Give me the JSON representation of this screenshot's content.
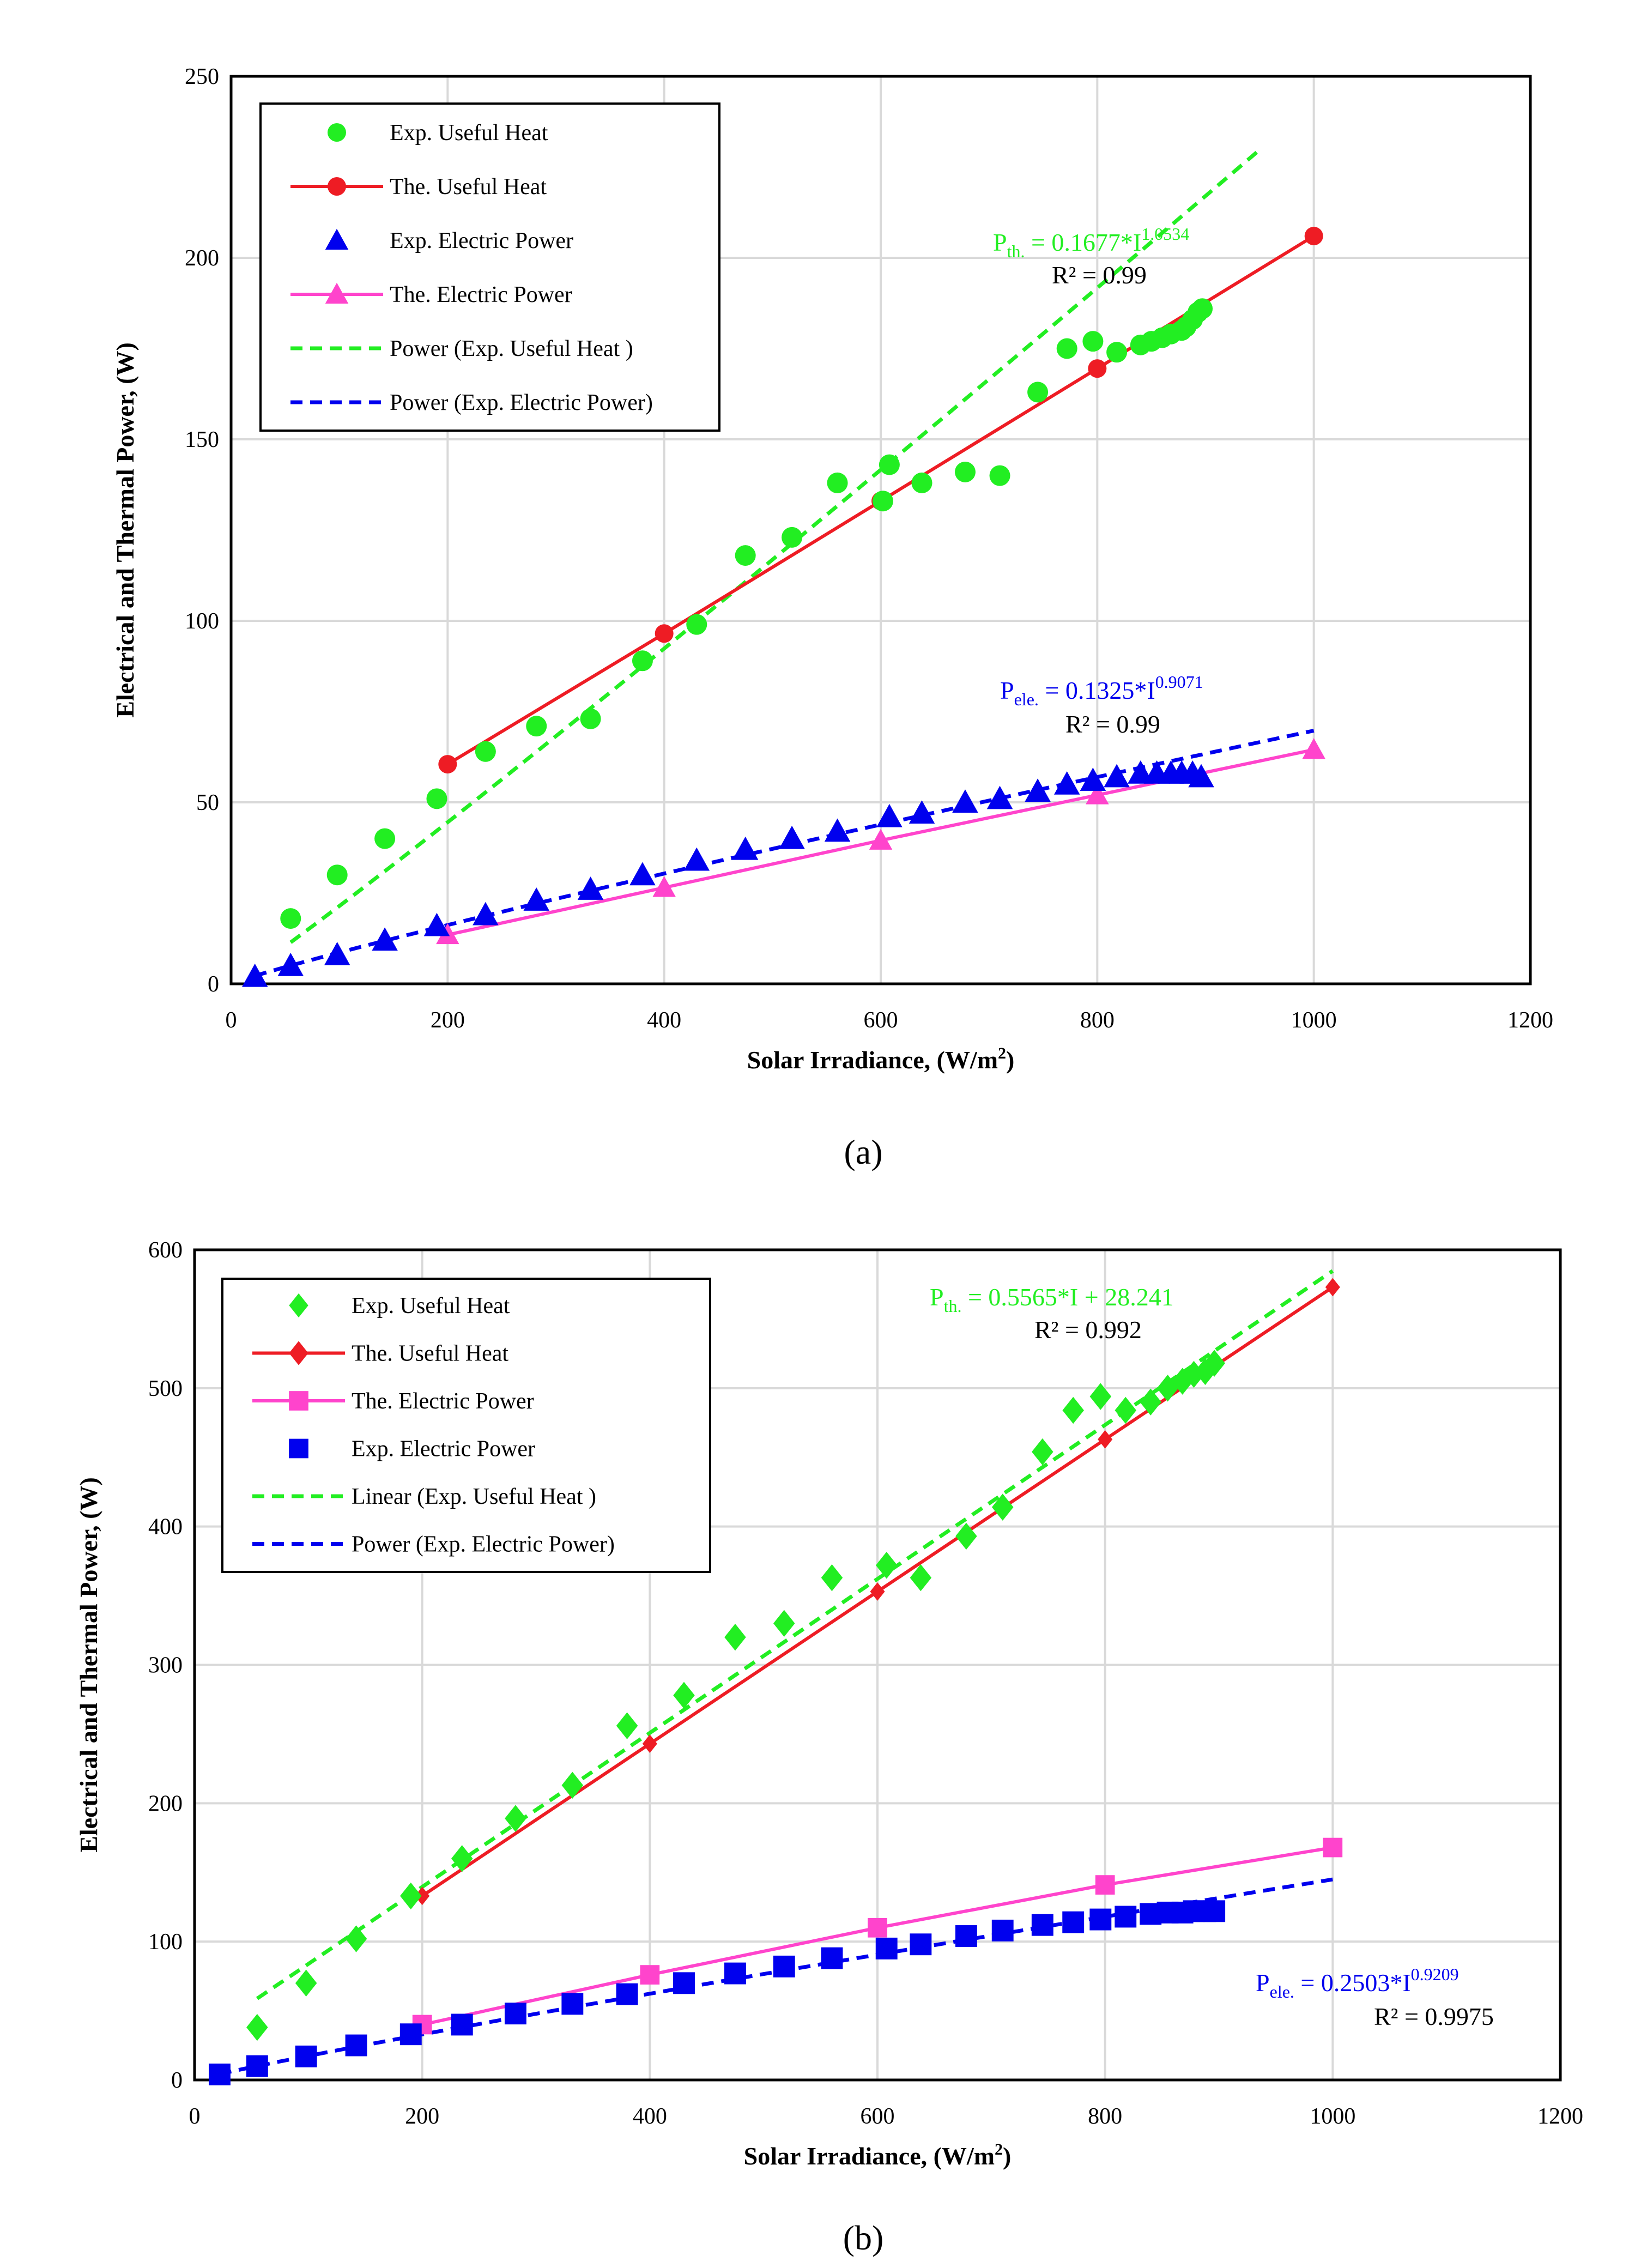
{
  "captions": {
    "a": "(a)",
    "b": "(b)"
  },
  "colors": {
    "green": "#22ee22",
    "red": "#ee1c24",
    "blue": "#0000ee",
    "magenta": "#ff44cc",
    "grid": "#d9d9d9"
  },
  "chart_data": [
    {
      "id": "a",
      "type": "scatter",
      "caption": "(a)",
      "xlabel": "Solar Irradiance, (W/m2)",
      "xlabel_main": "Solar Irradiance, (W/m",
      "xlabel_sup": "2",
      "xlabel_close": ")",
      "ylabel": "Electrical and Thermal Power, (W)",
      "xlim": [
        0,
        1200
      ],
      "ylim": [
        0,
        250
      ],
      "xticks": [
        0,
        200,
        400,
        600,
        800,
        1000,
        1200
      ],
      "yticks": [
        0,
        50,
        100,
        150,
        200,
        250
      ],
      "grid": true,
      "legend_position": "top-left",
      "series": [
        {
          "name": "Exp. Useful Heat",
          "kind": "points",
          "marker": "circle",
          "color": "green",
          "x": [
            55,
            98,
            142,
            190,
            235,
            282,
            332,
            380,
            430,
            475,
            518,
            560,
            602,
            608,
            638,
            678,
            710,
            745,
            772,
            796,
            818,
            840,
            850,
            860,
            868,
            878,
            882,
            888,
            893,
            897
          ],
          "y": [
            18,
            30,
            40,
            51,
            64,
            71,
            73,
            89,
            99,
            118,
            123,
            138,
            133,
            143,
            138,
            141,
            140,
            163,
            175,
            177,
            174,
            176,
            177,
            178,
            179,
            180,
            181,
            183,
            185,
            186
          ]
        },
        {
          "name": "The. Useful Heat",
          "kind": "line-markers",
          "marker": "circle",
          "color": "red",
          "x": [
            200,
            400,
            600,
            800,
            1000
          ],
          "y": [
            60.5,
            96.5,
            133,
            169.5,
            206
          ]
        },
        {
          "name": "Exp. Electric Power",
          "kind": "points",
          "marker": "triangle",
          "color": "blue",
          "x": [
            22,
            55,
            98,
            142,
            190,
            235,
            282,
            332,
            380,
            430,
            475,
            518,
            560,
            608,
            638,
            678,
            710,
            745,
            772,
            796,
            818,
            840,
            855,
            868,
            878,
            888,
            896
          ],
          "y": [
            2,
            5,
            8,
            12,
            16,
            19,
            23,
            26,
            30,
            34,
            37,
            40,
            42,
            46,
            47,
            50,
            51,
            53,
            55,
            56,
            57,
            58,
            58,
            58,
            58,
            58,
            57
          ]
        },
        {
          "name": "The. Electric Power",
          "kind": "line-markers",
          "marker": "triangle",
          "color": "magenta",
          "x": [
            200,
            400,
            600,
            800,
            1000
          ],
          "y": [
            13.5,
            26.5,
            39.5,
            52,
            64.5
          ]
        },
        {
          "name": "Power (Exp. Useful Heat )",
          "kind": "fit-power",
          "color": "green",
          "a": 0.1677,
          "b": 1.0534,
          "xrange": [
            55,
            950
          ]
        },
        {
          "name": "Power (Exp. Electric Power)",
          "kind": "fit-power",
          "color": "blue",
          "a": 0.1325,
          "b": 0.9071,
          "xrange": [
            22,
            1000
          ]
        }
      ],
      "annotations": [
        {
          "id": "th",
          "color": "green",
          "main": "P",
          "sub": "th.",
          "text": " = 0.1677*I",
          "sup": "1.0534",
          "r2": "R² = 0.99"
        },
        {
          "id": "ele",
          "color": "blue",
          "main": "P",
          "sub": "ele.",
          "text": " = 0.1325*I",
          "sup": "0.9071",
          "r2": "R² = 0.99"
        }
      ]
    },
    {
      "id": "b",
      "type": "scatter",
      "caption": "(b)",
      "xlabel": "Solar Irradiance, (W/m2)",
      "xlabel_main": "Solar Irradiance, (W/m",
      "xlabel_sup": "2",
      "xlabel_close": ")",
      "ylabel": "Electrical and Thermal Power, (W)",
      "xlim": [
        0,
        1200
      ],
      "ylim": [
        0,
        600
      ],
      "xticks": [
        0,
        200,
        400,
        600,
        800,
        1000,
        1200
      ],
      "yticks": [
        0,
        100,
        200,
        300,
        400,
        500,
        600
      ],
      "grid": true,
      "legend_position": "top-left",
      "series": [
        {
          "name": "Exp. Useful Heat",
          "kind": "points",
          "marker": "diamond",
          "color": "green",
          "x": [
            55,
            98,
            142,
            190,
            235,
            282,
            332,
            380,
            430,
            475,
            518,
            560,
            608,
            638,
            678,
            710,
            745,
            772,
            796,
            818,
            840,
            855,
            868,
            878,
            888,
            896
          ],
          "y": [
            38,
            70,
            102,
            133,
            160,
            189,
            213,
            256,
            278,
            320,
            330,
            363,
            372,
            363,
            393,
            414,
            454,
            484,
            494,
            484,
            490,
            500,
            505,
            510,
            512,
            518
          ]
        },
        {
          "name": "The. Useful Heat",
          "kind": "line-markers",
          "marker": "diamond",
          "color": "red",
          "x": [
            200,
            400,
            600,
            800,
            1000
          ],
          "y": [
            133,
            243,
            353,
            463,
            573
          ]
        },
        {
          "name": "The. Electric Power",
          "kind": "line-markers",
          "marker": "square",
          "color": "magenta",
          "x": [
            200,
            400,
            600,
            800,
            1000
          ],
          "y": [
            40,
            76,
            110,
            141,
            168
          ]
        },
        {
          "name": "Exp. Electric Power",
          "kind": "points",
          "marker": "square",
          "color": "blue",
          "x": [
            22,
            55,
            98,
            142,
            190,
            235,
            282,
            332,
            380,
            430,
            475,
            518,
            560,
            608,
            638,
            678,
            710,
            745,
            772,
            796,
            818,
            840,
            855,
            868,
            878,
            888,
            896
          ],
          "y": [
            4,
            10,
            17,
            25,
            33,
            40,
            48,
            55,
            62,
            70,
            77,
            82,
            88,
            95,
            98,
            104,
            108,
            112,
            114,
            116,
            118,
            120,
            121,
            121,
            122,
            122,
            122
          ]
        },
        {
          "name": "Linear (Exp. Useful Heat )",
          "kind": "fit-linear",
          "color": "green",
          "m": 0.5565,
          "c": 28.241,
          "xrange": [
            55,
            1000
          ]
        },
        {
          "name": "Power (Exp. Electric Power)",
          "kind": "fit-power",
          "color": "blue",
          "a": 0.2503,
          "b": 0.9209,
          "xrange": [
            22,
            1000
          ]
        }
      ],
      "annotations": [
        {
          "id": "th",
          "color": "green",
          "main": "P",
          "sub": "th.",
          "text": " = 0.5565*I + 28.241",
          "sup": "",
          "r2": "R² = 0.992"
        },
        {
          "id": "ele",
          "color": "blue",
          "main": "P",
          "sub": "ele.",
          "text": " = 0.2503*I",
          "sup": "0.9209",
          "r2": "R² = 0.9975"
        }
      ]
    }
  ]
}
